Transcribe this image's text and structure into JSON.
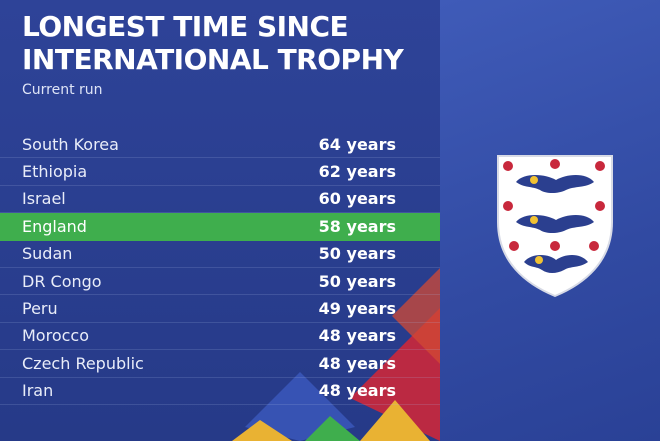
{
  "header": {
    "title": "LONGEST TIME SINCE\nINTERNATIONAL TROPHY",
    "subtitle": "Current run"
  },
  "rows": [
    {
      "country": "South Korea",
      "value": "64 years"
    },
    {
      "country": "Ethiopia",
      "value": "62 years"
    },
    {
      "country": "Israel",
      "value": "60 years"
    },
    {
      "country": "England",
      "value": "58 years",
      "highlight": true
    },
    {
      "country": "Sudan",
      "value": "50 years"
    },
    {
      "country": "DR Congo",
      "value": "50 years"
    },
    {
      "country": "Peru",
      "value": "49 years"
    },
    {
      "country": "Morocco",
      "value": "48 years"
    },
    {
      "country": "Czech Republic",
      "value": "48 years"
    },
    {
      "country": "Iran",
      "value": "48 years"
    }
  ],
  "colors": {
    "highlight": "#3fae4d",
    "background": "#2e4398",
    "accent_red": "#c8283c",
    "accent_yellow": "#e9b233",
    "accent_green": "#3fae4d"
  },
  "crest": {
    "icon": "england-three-lions-crest-icon"
  }
}
